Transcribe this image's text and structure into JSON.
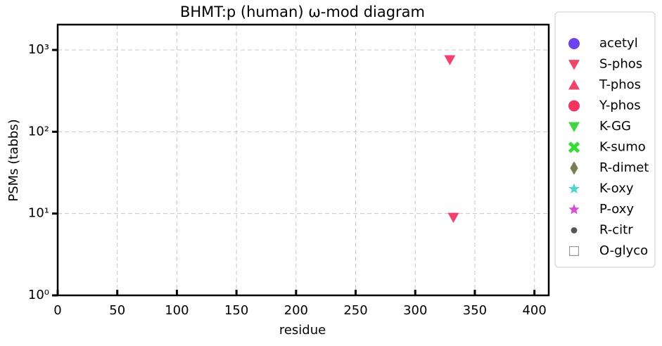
{
  "chart_data": {
    "type": "scatter",
    "title": "BHMT:p (human) ω-mod diagram",
    "x_label": "residue",
    "y_label": "PSMs (tabbs)",
    "log_y": true,
    "grid": true,
    "legend": "outside-right",
    "xlim": [
      0,
      412
    ],
    "ylim": [
      1,
      2040
    ],
    "xticks": [
      0,
      50,
      100,
      150,
      200,
      250,
      300,
      350,
      400
    ],
    "yticks": [
      {
        "value": 1,
        "label": "10⁰"
      },
      {
        "value": 10,
        "label": "10¹"
      },
      {
        "value": 100,
        "label": "10²"
      },
      {
        "value": 1000,
        "label": "10³"
      }
    ],
    "series": [
      {
        "name": "acetyl",
        "color": "#5522ee",
        "marker": "circle",
        "x": [],
        "values": []
      },
      {
        "name": "S-phos",
        "color": "#ee2255",
        "marker": "triangle-down",
        "x": [
          329,
          332
        ],
        "values": [
          760,
          9
        ]
      },
      {
        "name": "T-phos",
        "color": "#ee2255",
        "marker": "triangle-up",
        "x": [],
        "values": []
      },
      {
        "name": "Y-phos",
        "color": "#ee1144",
        "marker": "circle",
        "x": [],
        "values": []
      },
      {
        "name": "K-GG",
        "color": "#22cc22",
        "marker": "triangle-down",
        "x": [],
        "values": []
      },
      {
        "name": "K-sumo",
        "color": "#33dd33",
        "marker": "x",
        "x": [],
        "values": []
      },
      {
        "name": "R-dimet",
        "color": "#666633",
        "marker": "diamond",
        "x": [],
        "values": []
      },
      {
        "name": "K-oxy",
        "color": "#33cccc",
        "marker": "star",
        "x": [],
        "values": []
      },
      {
        "name": "P-oxy",
        "color": "#cc33cc",
        "marker": "star",
        "x": [],
        "values": []
      },
      {
        "name": "R-citr",
        "color": "#555555",
        "marker": "dot",
        "x": [],
        "values": []
      },
      {
        "name": "O-glyco",
        "color": "#999999",
        "marker": "square-open",
        "x": [],
        "values": []
      }
    ]
  }
}
